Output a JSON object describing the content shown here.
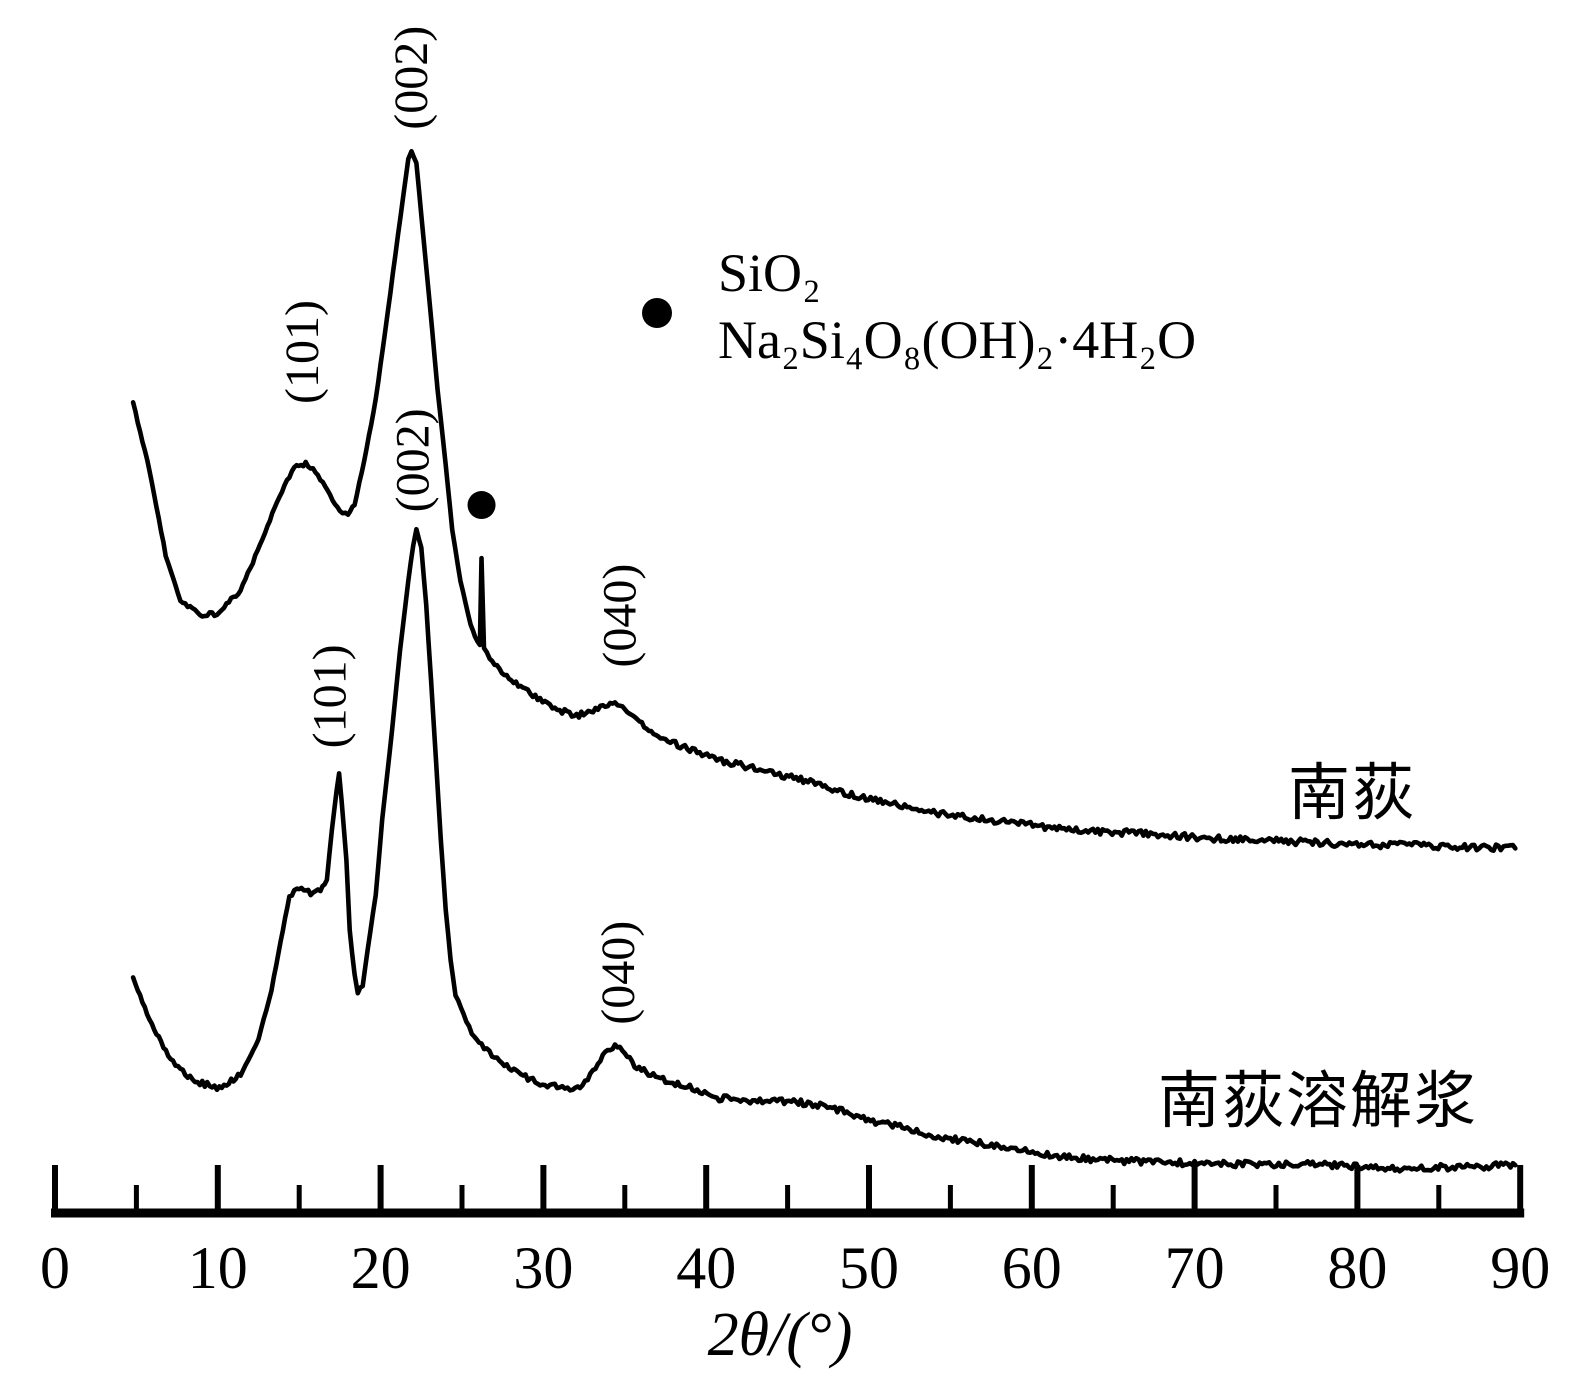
{
  "figure": {
    "background_color": "#ffffff",
    "ink_color": "#000000"
  },
  "legend": {
    "marker": "filled-circle",
    "lines": [
      "SiO₂",
      "Na₂Si₄O₈(OH)₂·4H₂O"
    ]
  },
  "curve_labels": {
    "top": "南荻",
    "bottom": "南荻溶解浆"
  },
  "chart_data": {
    "type": "line",
    "title": "",
    "xlabel": "2θ/(°)",
    "ylabel": "",
    "x_range": [
      0,
      90
    ],
    "grid": false,
    "legend_position": "upper-center",
    "x_ticks_major": [
      0,
      10,
      20,
      30,
      40,
      50,
      60,
      70,
      80,
      90
    ],
    "x_ticks_minor": [
      5,
      15,
      25,
      35,
      45,
      55,
      65,
      75,
      85
    ],
    "y_units": "intensity (a.u., relative 0-100)",
    "series": [
      {
        "name": "南荻",
        "points": [
          [
            4.8,
            76.2
          ],
          [
            5.8,
            69.9
          ],
          [
            6.8,
            61.9
          ],
          [
            7.7,
            57.7
          ],
          [
            8.9,
            56.3
          ],
          [
            10.1,
            56.5
          ],
          [
            11.4,
            58.6
          ],
          [
            12.6,
            62.8
          ],
          [
            13.8,
            67.5
          ],
          [
            14.7,
            70.1
          ],
          [
            15.4,
            70.6
          ],
          [
            16.0,
            69.7
          ],
          [
            16.9,
            67.5
          ],
          [
            17.5,
            65.9
          ],
          [
            18.0,
            65.7
          ],
          [
            18.4,
            66.6
          ],
          [
            19.0,
            70.8
          ],
          [
            19.7,
            76.5
          ],
          [
            20.3,
            83.1
          ],
          [
            20.9,
            90.1
          ],
          [
            21.4,
            95.8
          ],
          [
            21.7,
            99.1
          ],
          [
            21.9,
            100
          ],
          [
            22.2,
            98.8
          ],
          [
            22.5,
            93.9
          ],
          [
            23.0,
            85.9
          ],
          [
            23.5,
            77.4
          ],
          [
            24.0,
            70.4
          ],
          [
            24.4,
            64.3
          ],
          [
            24.9,
            59.5
          ],
          [
            25.4,
            56.1
          ],
          [
            25.8,
            54.1
          ],
          [
            26.1,
            53.4
          ],
          [
            26.2,
            61.6
          ],
          [
            26.35,
            53.3
          ],
          [
            26.7,
            52.3
          ],
          [
            27.6,
            50.6
          ],
          [
            28.6,
            49.5
          ],
          [
            29.8,
            48.3
          ],
          [
            31.0,
            47.3
          ],
          [
            31.9,
            46.8
          ],
          [
            32.9,
            47.1
          ],
          [
            33.8,
            47.7
          ],
          [
            34.4,
            47.9
          ],
          [
            35.0,
            47.5
          ],
          [
            35.9,
            46.2
          ],
          [
            37.2,
            44.7
          ],
          [
            39.0,
            43.6
          ],
          [
            40.8,
            42.6
          ],
          [
            42.7,
            41.9
          ],
          [
            44.5,
            41.2
          ],
          [
            46.4,
            40.6
          ],
          [
            48.2,
            39.6
          ],
          [
            50.1,
            38.9
          ],
          [
            51.9,
            38.3
          ],
          [
            55.0,
            37.4
          ],
          [
            58.0,
            36.8
          ],
          [
            61.1,
            36.3
          ],
          [
            64.2,
            35.9
          ],
          [
            67.3,
            35.7
          ],
          [
            70.3,
            35.3
          ],
          [
            73.4,
            35.1
          ],
          [
            76.5,
            34.9
          ],
          [
            79.5,
            34.7
          ],
          [
            82.6,
            34.6
          ],
          [
            85.7,
            34.5
          ],
          [
            89.7,
            34.3
          ]
        ],
        "peaks": [
          {
            "hkl": "(101)",
            "two_theta": 15.2
          },
          {
            "hkl": "(002)",
            "two_theta": 21.9
          },
          {
            "hkl": "(040)",
            "two_theta": 34.6
          }
        ]
      },
      {
        "name": "南荻溶解浆",
        "points": [
          [
            4.8,
            22.1
          ],
          [
            5.8,
            18.2
          ],
          [
            7.1,
            14.4
          ],
          [
            8.6,
            12.3
          ],
          [
            10.1,
            11.8
          ],
          [
            11.4,
            13.0
          ],
          [
            12.5,
            16.3
          ],
          [
            13.3,
            21.0
          ],
          [
            14.0,
            26.6
          ],
          [
            14.4,
            29.9
          ],
          [
            15.0,
            30.6
          ],
          [
            15.7,
            30.1
          ],
          [
            16.3,
            30.4
          ],
          [
            16.7,
            31.3
          ],
          [
            17.0,
            36.0
          ],
          [
            17.3,
            39.8
          ],
          [
            17.45,
            41.4
          ],
          [
            17.6,
            38.9
          ],
          [
            17.9,
            33.2
          ],
          [
            18.1,
            26.6
          ],
          [
            18.4,
            22.4
          ],
          [
            18.6,
            20.7
          ],
          [
            18.9,
            21.4
          ],
          [
            19.2,
            24.7
          ],
          [
            19.7,
            29.9
          ],
          [
            20.1,
            37.0
          ],
          [
            20.7,
            45.4
          ],
          [
            21.2,
            53.0
          ],
          [
            21.7,
            59.5
          ],
          [
            22.0,
            62.8
          ],
          [
            22.2,
            64.3
          ],
          [
            22.5,
            62.6
          ],
          [
            22.8,
            57.2
          ],
          [
            23.1,
            50.1
          ],
          [
            23.4,
            42.6
          ],
          [
            23.7,
            35.1
          ],
          [
            24.0,
            28.5
          ],
          [
            24.3,
            23.8
          ],
          [
            24.6,
            20.5
          ],
          [
            25.1,
            18.6
          ],
          [
            25.6,
            17.0
          ],
          [
            26.2,
            15.8
          ],
          [
            27.0,
            14.7
          ],
          [
            27.9,
            13.6
          ],
          [
            28.9,
            12.8
          ],
          [
            30.1,
            12.0
          ],
          [
            31.0,
            11.8
          ],
          [
            31.8,
            11.4
          ],
          [
            32.4,
            12.0
          ],
          [
            33.2,
            13.6
          ],
          [
            33.8,
            15.1
          ],
          [
            34.4,
            15.8
          ],
          [
            35.0,
            15.1
          ],
          [
            35.6,
            13.9
          ],
          [
            36.6,
            13.0
          ],
          [
            37.5,
            12.5
          ],
          [
            39.0,
            11.8
          ],
          [
            40.8,
            10.8
          ],
          [
            42.7,
            10.6
          ],
          [
            44.5,
            10.6
          ],
          [
            46.4,
            10.3
          ],
          [
            48.2,
            9.7
          ],
          [
            50.1,
            8.7
          ],
          [
            51.9,
            8.1
          ],
          [
            54.4,
            7.1
          ],
          [
            56.8,
            6.6
          ],
          [
            59.3,
            5.9
          ],
          [
            61.7,
            5.3
          ],
          [
            64.2,
            5.0
          ],
          [
            67.3,
            4.8
          ],
          [
            70.3,
            4.7
          ],
          [
            73.4,
            4.6
          ],
          [
            76.5,
            4.6
          ],
          [
            79.5,
            4.4
          ],
          [
            82.6,
            4.2
          ],
          [
            85.7,
            4.3
          ],
          [
            89.7,
            4.5
          ]
        ],
        "peaks": [
          {
            "hkl": "(101)",
            "two_theta": 17.4
          },
          {
            "hkl": "(002)",
            "two_theta": 22.2
          },
          {
            "hkl": "(040)",
            "two_theta": 34.6
          }
        ]
      }
    ],
    "annotations": [
      {
        "type": "peak",
        "series": "南荻",
        "text": "(002)",
        "theta": 21.9,
        "i": 106.8
      },
      {
        "type": "peak",
        "series": "南荻",
        "text": "(101)",
        "theta": 15.2,
        "i": 81.0
      },
      {
        "type": "peak",
        "series": "南荻",
        "text": "(040)",
        "theta": 34.7,
        "i": 56.2
      },
      {
        "type": "peak",
        "series": "南荻溶解浆",
        "text": "(002)",
        "theta": 22.0,
        "i": 70.8
      },
      {
        "type": "peak",
        "series": "南荻溶解浆",
        "text": "(101)",
        "theta": 16.9,
        "i": 48.6
      },
      {
        "type": "peak",
        "series": "南荻溶解浆",
        "text": "(040)",
        "theta": 34.6,
        "i": 22.6
      },
      {
        "type": "marker-dot",
        "series": "南荻",
        "text": "●",
        "theta": 26.2,
        "i": 66.6
      }
    ]
  }
}
